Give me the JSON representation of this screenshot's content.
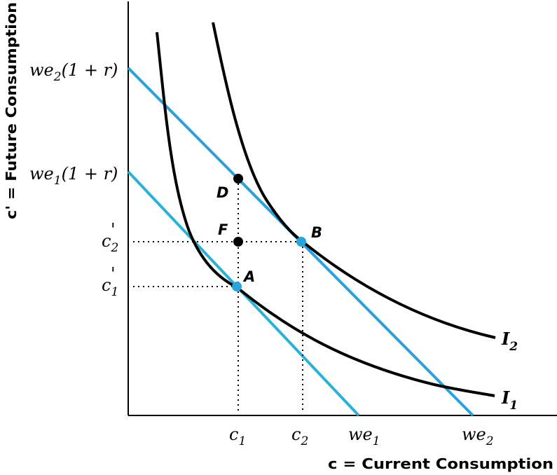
{
  "axes": {
    "x_title": "c = Current Consumption",
    "y_title": "c' = Future Consumption"
  },
  "y_ticks": [
    {
      "base": "we",
      "sub": "2",
      "rest": "(1 + r)"
    },
    {
      "base": "we",
      "sub": "1",
      "rest": "(1 + r)"
    },
    {
      "base": "c",
      "sub": "2",
      "sup": "'"
    },
    {
      "base": "c",
      "sub": "1",
      "sup": "'"
    }
  ],
  "x_ticks": [
    {
      "base": "c",
      "sub": "1"
    },
    {
      "base": "c",
      "sub": "2"
    },
    {
      "base": "we",
      "sub": "1"
    },
    {
      "base": "we",
      "sub": "2"
    }
  ],
  "points": [
    {
      "label": "A",
      "color": "#29a3db"
    },
    {
      "label": "B",
      "color": "#29a3db"
    },
    {
      "label": "D",
      "color": "#000000"
    },
    {
      "label": "F",
      "color": "#000000"
    }
  ],
  "curves": [
    {
      "name": "I",
      "sub": "1"
    },
    {
      "name": "I",
      "sub": "2"
    }
  ],
  "colors": {
    "budget_line_1": "#29b2d6",
    "budget_line_2": "#2aa0dc",
    "indifference_curve": "#000000",
    "axis": "#000000"
  }
}
